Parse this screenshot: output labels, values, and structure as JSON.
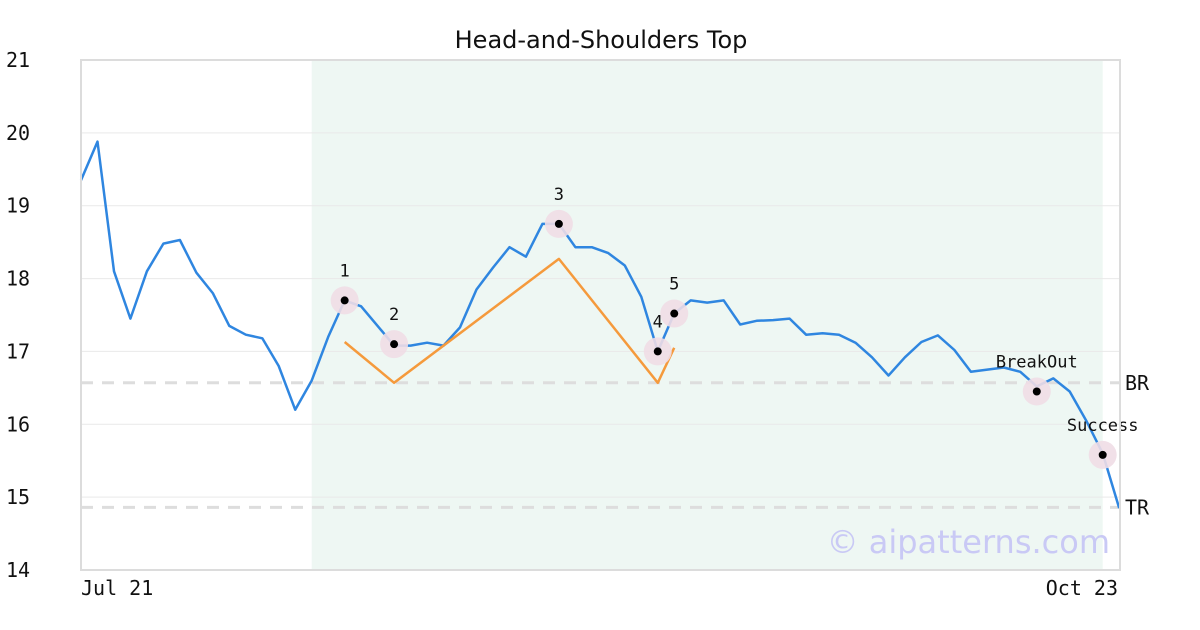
{
  "chart_data": {
    "type": "line",
    "title": "Head-and-Shoulders Top",
    "xlabel": "",
    "ylabel": "",
    "ylim": [
      14,
      21
    ],
    "yticks": [
      14,
      15,
      16,
      17,
      18,
      19,
      20,
      21
    ],
    "x_tick_labels": [
      {
        "x": 0,
        "label": "Jul 21"
      },
      {
        "x": 63,
        "label": "Oct 23"
      }
    ],
    "grid": true,
    "series": [
      {
        "color": "#2f86e0",
        "x": [
          0,
          1,
          2,
          3,
          4,
          5,
          6,
          7,
          8,
          9,
          10,
          11,
          12,
          13,
          14,
          15,
          16,
          17,
          18,
          19,
          20,
          21,
          22,
          23,
          24,
          25,
          26,
          27,
          28,
          29,
          30,
          31,
          32,
          33,
          34,
          35,
          36,
          37,
          38,
          39,
          40,
          41,
          42,
          43,
          44,
          45,
          46,
          47,
          48,
          49,
          50,
          51,
          52,
          53,
          54,
          55,
          56,
          57,
          58,
          59,
          60,
          61,
          62,
          63
        ],
        "values": [
          19.35,
          19.88,
          18.1,
          17.45,
          18.1,
          18.48,
          18.53,
          18.08,
          17.8,
          17.35,
          17.23,
          17.18,
          16.8,
          16.2,
          16.6,
          17.2,
          17.7,
          17.62,
          17.35,
          17.08,
          17.08,
          17.12,
          17.08,
          17.33,
          17.85,
          18.15,
          18.43,
          18.3,
          18.75,
          18.75,
          18.43,
          18.43,
          18.35,
          18.18,
          17.75,
          17.0,
          17.52,
          17.7,
          17.67,
          17.7,
          17.37,
          17.42,
          17.43,
          17.45,
          17.23,
          17.25,
          17.23,
          17.12,
          16.92,
          16.67,
          16.92,
          17.13,
          17.22,
          17.02,
          16.72,
          16.75,
          16.78,
          16.72,
          16.52,
          16.63,
          16.45,
          16.05,
          15.6,
          14.85
        ]
      },
      {
        "color": "#f59a3c",
        "x": [
          16,
          19,
          29,
          35,
          36
        ],
        "values": [
          17.13,
          16.57,
          18.27,
          16.57,
          17.05
        ]
      }
    ],
    "highlight_band": {
      "x_start": 14,
      "x_end": 62,
      "color": "#eef7f3"
    },
    "reference_lines": [
      {
        "label": "BR",
        "y": 16.57
      },
      {
        "label": "TR",
        "y": 14.86
      }
    ],
    "points": [
      {
        "label": "1",
        "x": 16,
        "y": 17.7
      },
      {
        "label": "2",
        "x": 19,
        "y": 17.1
      },
      {
        "label": "3",
        "x": 29,
        "y": 18.75
      },
      {
        "label": "4",
        "x": 35,
        "y": 17.0
      },
      {
        "label": "5",
        "x": 36,
        "y": 17.52
      },
      {
        "label": "BreakOut",
        "x": 58,
        "y": 16.45
      },
      {
        "label": "Success",
        "x": 62,
        "y": 15.58
      }
    ],
    "watermark": "© aipatterns.com"
  }
}
